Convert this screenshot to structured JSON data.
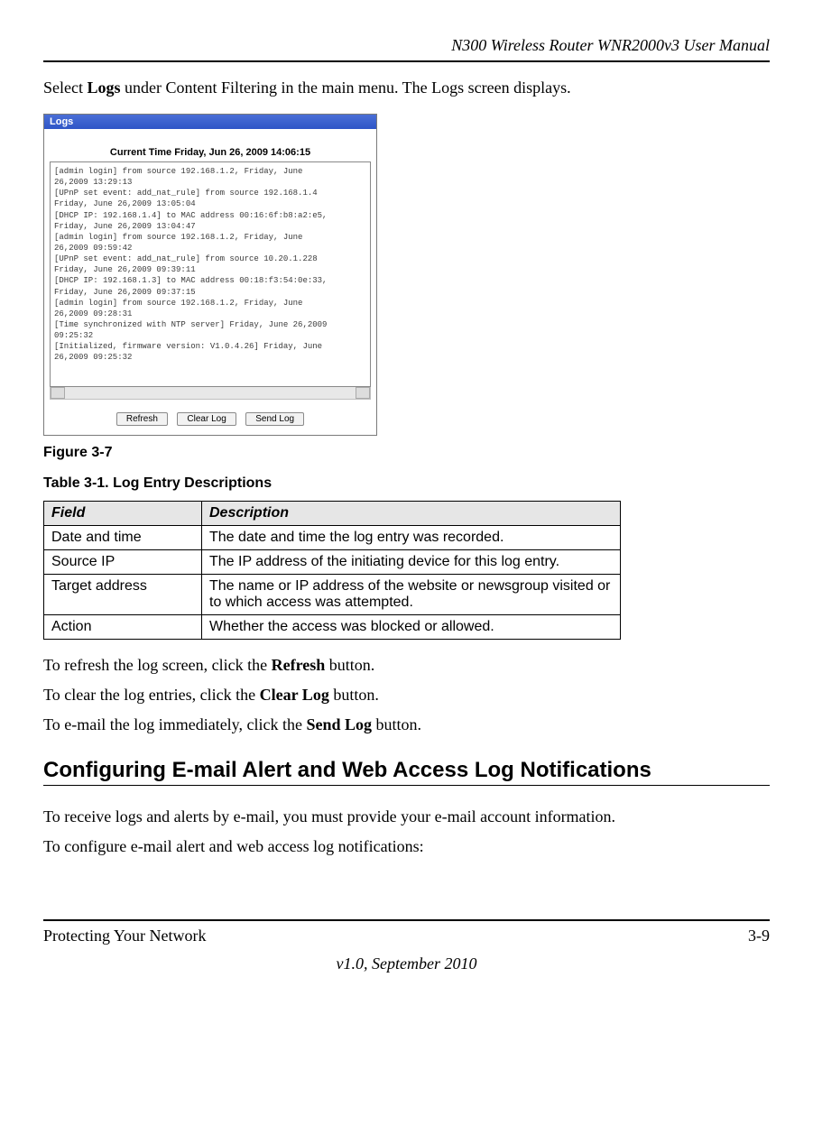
{
  "header": {
    "doc_title": "N300 Wireless Router WNR2000v3 User Manual"
  },
  "intro": {
    "pre": "Select ",
    "bold": "Logs",
    "post": " under Content Filtering in the main menu. The Logs screen displays."
  },
  "screenshot": {
    "titlebar": "Logs",
    "current_time": "Current Time Friday, Jun 26, 2009 14:06:15",
    "log_text": "[admin login] from source 192.168.1.2, Friday, June\n26,2009 13:29:13\n[UPnP set event: add_nat_rule] from source 192.168.1.4\nFriday, June 26,2009 13:05:04\n[DHCP IP: 192.168.1.4] to MAC address 00:16:6f:b8:a2:e5,\nFriday, June 26,2009 13:04:47\n[admin login] from source 192.168.1.2, Friday, June\n26,2009 09:59:42\n[UPnP set event: add_nat_rule] from source 10.20.1.228\nFriday, June 26,2009 09:39:11\n[DHCP IP: 192.168.1.3] to MAC address 00:18:f3:54:0e:33,\nFriday, June 26,2009 09:37:15\n[admin login] from source 192.168.1.2, Friday, June\n26,2009 09:28:31\n[Time synchronized with NTP server] Friday, June 26,2009\n09:25:32\n[Initialized, firmware version: V1.0.4.26] Friday, June\n26,2009 09:25:32",
    "buttons": {
      "refresh": "Refresh",
      "clear": "Clear Log",
      "send": "Send Log"
    }
  },
  "figure_caption": "Figure 3-7",
  "table": {
    "caption": "Table 3-1.  Log Entry Descriptions",
    "header_field": "Field",
    "header_desc": "Description",
    "rows": [
      {
        "field": "Date and time",
        "desc": "The date and time the log entry was recorded."
      },
      {
        "field": "Source IP",
        "desc": "The IP address of the initiating device for this log entry."
      },
      {
        "field": "Target address",
        "desc": "The name or IP address of the website or newsgroup visited or to which access was attempted."
      },
      {
        "field": "Action",
        "desc": "Whether the access was blocked or allowed."
      }
    ]
  },
  "lines": {
    "l1_pre": "To refresh the log screen, click the ",
    "l1_bold": "Refresh",
    "l1_post": " button.",
    "l2_pre": "To clear the log entries, click the ",
    "l2_bold": "Clear Log",
    "l2_post": " button.",
    "l3_pre": "To e-mail the log immediately, click the ",
    "l3_bold": "Send Log",
    "l3_post": " button."
  },
  "section_heading": "Configuring E-mail Alert and Web Access Log Notifications",
  "section_body": {
    "p1": "To receive logs and alerts by e-mail, you must provide your e-mail account information.",
    "p2": "To configure e-mail alert and web access log notifications:"
  },
  "footer": {
    "left": "Protecting Your Network",
    "right": "3-9",
    "version": "v1.0, September 2010"
  }
}
